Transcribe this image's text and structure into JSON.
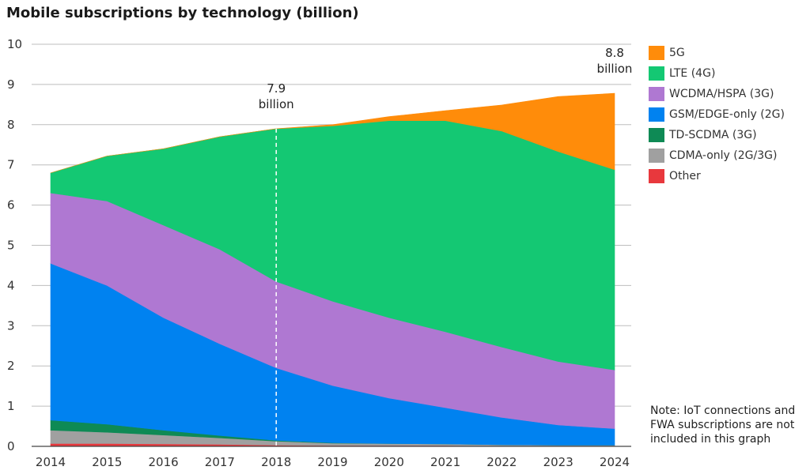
{
  "chart_data": {
    "type": "area",
    "title": "Mobile subscriptions by technology (billion)",
    "xlabel": "",
    "ylabel": "",
    "x": [
      2014,
      2015,
      2016,
      2017,
      2018,
      2019,
      2020,
      2021,
      2022,
      2023,
      2024
    ],
    "ylim": [
      0,
      10
    ],
    "yticks": [
      0,
      1,
      2,
      3,
      4,
      5,
      6,
      7,
      8,
      9,
      10
    ],
    "stacked": true,
    "grid": true,
    "legend_position": "right",
    "series": [
      {
        "name": "Other",
        "color": "#e8383d",
        "values": [
          0.07,
          0.07,
          0.06,
          0.05,
          0.03,
          0.02,
          0.02,
          0.02,
          0.01,
          0.01,
          0.01
        ]
      },
      {
        "name": "CDMA-only (2G/3G)",
        "color": "#a0a0a0",
        "values": [
          0.33,
          0.28,
          0.22,
          0.16,
          0.1,
          0.06,
          0.05,
          0.04,
          0.03,
          0.02,
          0.02
        ]
      },
      {
        "name": "TD-SCDMA (3G)",
        "color": "#0e8a55",
        "values": [
          0.25,
          0.2,
          0.12,
          0.06,
          0.02,
          0.01,
          0.0,
          0.0,
          0.0,
          0.0,
          0.0
        ]
      },
      {
        "name": "GSM/EDGE-only (2G)",
        "color": "#0082f0",
        "values": [
          3.9,
          3.45,
          2.8,
          2.28,
          1.8,
          1.42,
          1.13,
          0.9,
          0.68,
          0.5,
          0.41
        ]
      },
      {
        "name": "WCDMA/HSPA (3G)",
        "color": "#af78d2",
        "values": [
          1.75,
          2.1,
          2.3,
          2.35,
          2.15,
          2.1,
          2.0,
          1.89,
          1.75,
          1.58,
          1.46
        ]
      },
      {
        "name": "LTE (4G)",
        "color": "#14c873",
        "values": [
          0.5,
          1.12,
          1.9,
          2.8,
          3.8,
          4.36,
          4.9,
          5.25,
          5.37,
          5.22,
          4.98
        ]
      },
      {
        "name": "5G",
        "color": "#ff8c0a",
        "values": [
          0.0,
          0.0,
          0.0,
          0.0,
          0.0,
          0.03,
          0.1,
          0.25,
          0.65,
          1.37,
          1.9
        ]
      }
    ],
    "legend_order": [
      "5G",
      "LTE (4G)",
      "WCDMA/HSPA (3G)",
      "GSM/EDGE-only (2G)",
      "TD-SCDMA (3G)",
      "CDMA-only (2G/3G)",
      "Other"
    ],
    "annotations": [
      {
        "x": 2018,
        "line1": "7.9",
        "line2": "billion",
        "dashed_line": true
      },
      {
        "x": 2024,
        "line1": "8.8",
        "line2": "billion",
        "dashed_line": false
      }
    ]
  },
  "note": "Note: IoT connections and FWA subscriptions are not included in this graph"
}
